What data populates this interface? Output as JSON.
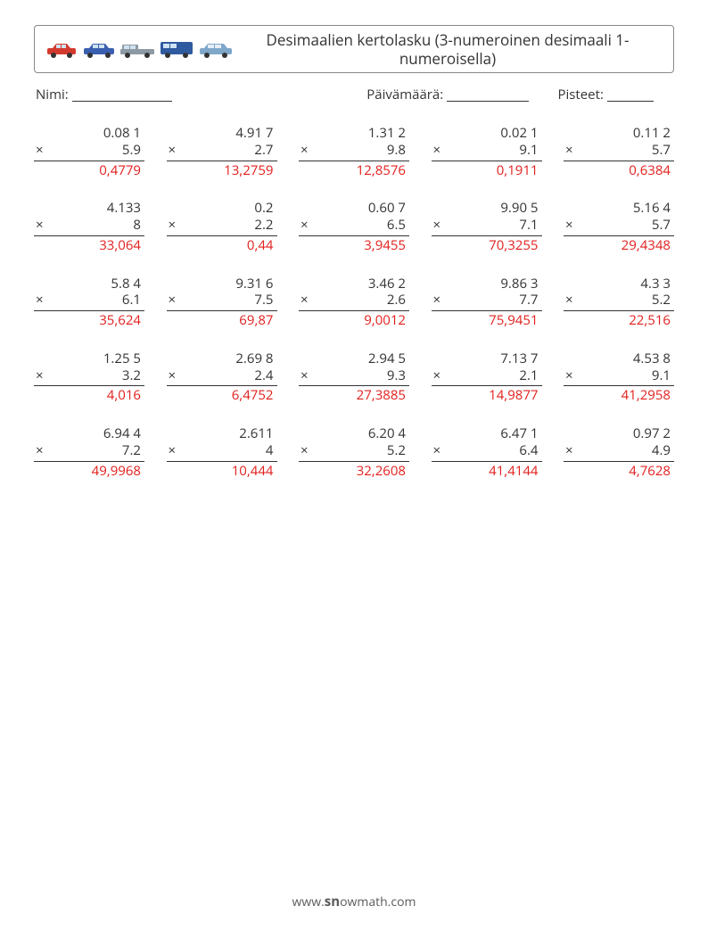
{
  "header": {
    "title": "Desimaalien kertolasku (3-numeroinen desimaali 1-numeroisella)"
  },
  "meta": {
    "name_label": "Nimi:",
    "date_label": "Päivämäärä:",
    "score_label": "Pisteet:",
    "name_blank_width": 112,
    "date_blank_width": 92,
    "score_blank_width": 52
  },
  "colors": {
    "text": "#333333",
    "answer": "#e2201e",
    "border": "#888888",
    "car_colors": [
      "#d33a2f",
      "#3a5fb0",
      "#8e9aa3",
      "#2e5aa0",
      "#7fa7c9"
    ]
  },
  "operator": "×",
  "problems": [
    [
      {
        "a": "0.08 1",
        "b": "5.9",
        "ans": "0,4779"
      },
      {
        "a": "4.91 7",
        "b": "2.7",
        "ans": "13,2759"
      },
      {
        "a": "1.31 2",
        "b": "9.8",
        "ans": "12,8576"
      },
      {
        "a": "0.02 1",
        "b": "9.1",
        "ans": "0,1911"
      },
      {
        "a": "0.11 2",
        "b": "5.7",
        "ans": "0,6384"
      }
    ],
    [
      {
        "a": "4.133",
        "b": "8",
        "ans": "33,064"
      },
      {
        "a": "0.2",
        "b": "2.2",
        "ans": "0,44"
      },
      {
        "a": "0.60 7",
        "b": "6.5",
        "ans": "3,9455"
      },
      {
        "a": "9.90 5",
        "b": "7.1",
        "ans": "70,3255"
      },
      {
        "a": "5.16 4",
        "b": "5.7",
        "ans": "29,4348"
      }
    ],
    [
      {
        "a": "5.8 4",
        "b": "6.1",
        "ans": "35,624"
      },
      {
        "a": "9.31 6",
        "b": "7.5",
        "ans": "69,87"
      },
      {
        "a": "3.46 2",
        "b": "2.6",
        "ans": "9,0012"
      },
      {
        "a": "9.86 3",
        "b": "7.7",
        "ans": "75,9451"
      },
      {
        "a": "4.3 3",
        "b": "5.2",
        "ans": "22,516"
      }
    ],
    [
      {
        "a": "1.25 5",
        "b": "3.2",
        "ans": "4,016"
      },
      {
        "a": "2.69 8",
        "b": "2.4",
        "ans": "6,4752"
      },
      {
        "a": "2.94 5",
        "b": "9.3",
        "ans": "27,3885"
      },
      {
        "a": "7.13 7",
        "b": "2.1",
        "ans": "14,9877"
      },
      {
        "a": "4.53 8",
        "b": "9.1",
        "ans": "41,2958"
      }
    ],
    [
      {
        "a": "6.94 4",
        "b": "7.2",
        "ans": "49,9968"
      },
      {
        "a": "2.611",
        "b": "4",
        "ans": "10,444"
      },
      {
        "a": "6.20 4",
        "b": "5.2",
        "ans": "32,2608"
      },
      {
        "a": "6.47 1",
        "b": "6.4",
        "ans": "41,4144"
      },
      {
        "a": "0.97 2",
        "b": "4.9",
        "ans": "4,7628"
      }
    ]
  ],
  "footer": {
    "prefix": "www.",
    "brand": "sn",
    "rest": "owmath.com"
  }
}
